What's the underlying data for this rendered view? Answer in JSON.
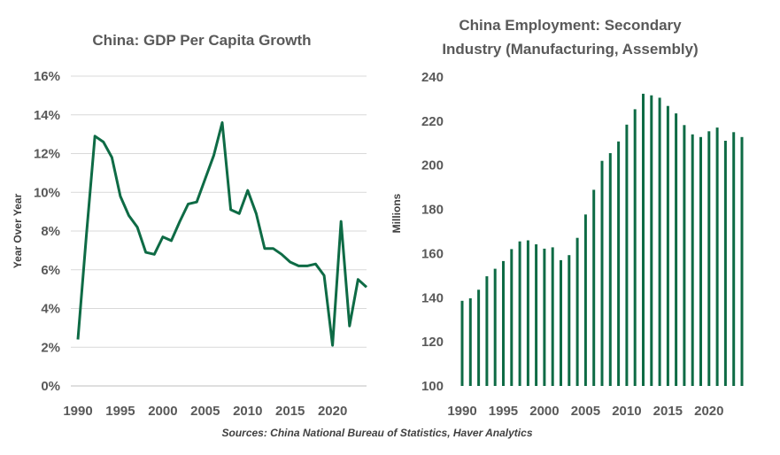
{
  "colors": {
    "series": "#0e6b45",
    "text": "#595959",
    "grid": "#d9d9d9"
  },
  "source_text": "Sources: China National Bureau of Statistics, Haver Analytics",
  "chart_data": [
    {
      "type": "line",
      "title": "China:  GDP Per Capita Growth",
      "xlabel": "",
      "ylabel": "Year Over Year",
      "xlim": [
        1990,
        2024
      ],
      "ylim": [
        0,
        16
      ],
      "yticks": [
        "0%",
        "2%",
        "4%",
        "6%",
        "8%",
        "10%",
        "12%",
        "14%",
        "16%"
      ],
      "ytick_values": [
        0,
        2,
        4,
        6,
        8,
        10,
        12,
        14,
        16
      ],
      "xticks": [
        "1990",
        "1995",
        "2000",
        "2005",
        "2010",
        "2015",
        "2020"
      ],
      "xtick_values": [
        1990,
        1995,
        2000,
        2005,
        2010,
        2015,
        2020
      ],
      "series": [
        {
          "name": "GDP Per Capita Growth",
          "x": [
            1990,
            1991,
            1992,
            1993,
            1994,
            1995,
            1996,
            1997,
            1998,
            1999,
            2000,
            2001,
            2002,
            2003,
            2004,
            2005,
            2006,
            2007,
            2008,
            2009,
            2010,
            2011,
            2012,
            2013,
            2014,
            2015,
            2016,
            2017,
            2018,
            2019,
            2020,
            2021,
            2022,
            2023,
            2024
          ],
          "values": [
            2.4,
            7.8,
            12.9,
            12.6,
            11.8,
            9.8,
            8.8,
            8.2,
            6.9,
            6.8,
            7.7,
            7.5,
            8.5,
            9.4,
            9.5,
            10.7,
            11.9,
            13.6,
            9.1,
            8.9,
            10.1,
            8.9,
            7.1,
            7.1,
            6.8,
            6.4,
            6.2,
            6.2,
            6.3,
            5.7,
            2.1,
            8.5,
            3.1,
            5.5,
            5.1
          ]
        }
      ]
    },
    {
      "type": "bar",
      "title": "China Employment:  Secondary Industry (Manufacturing,  Assembly)",
      "title_lines": [
        "China Employment:  Secondary",
        "Industry (Manufacturing,  Assembly)"
      ],
      "xlabel": "",
      "ylabel": "Millions",
      "xlim": [
        1990,
        2024
      ],
      "ylim": [
        100,
        240
      ],
      "yticks": [
        "100",
        "120",
        "140",
        "160",
        "180",
        "200",
        "220",
        "240"
      ],
      "ytick_values": [
        100,
        120,
        140,
        160,
        180,
        200,
        220,
        240
      ],
      "xticks": [
        "1990",
        "1995",
        "2000",
        "2005",
        "2010",
        "2015",
        "2020"
      ],
      "xtick_values": [
        1990,
        1995,
        2000,
        2005,
        2010,
        2015,
        2020
      ],
      "series": [
        {
          "name": "Secondary Industry Employment",
          "x": [
            1990,
            1991,
            1992,
            1993,
            1994,
            1995,
            1996,
            1997,
            1998,
            1999,
            2000,
            2001,
            2002,
            2003,
            2004,
            2005,
            2006,
            2007,
            2008,
            2009,
            2010,
            2011,
            2012,
            2013,
            2014,
            2015,
            2016,
            2017,
            2018,
            2019,
            2020,
            2021,
            2022,
            2023,
            2024
          ],
          "values": [
            138.6,
            139.7,
            143.6,
            149.7,
            153.1,
            156.6,
            162.0,
            165.5,
            166.0,
            164.2,
            162.2,
            162.8,
            157.0,
            159.3,
            167.1,
            177.7,
            188.9,
            202.0,
            205.5,
            210.8,
            218.4,
            225.4,
            232.4,
            231.7,
            230.6,
            226.9,
            223.5,
            218.2,
            214.0,
            212.8,
            215.4,
            217.1,
            211.1,
            215.0,
            212.8
          ]
        }
      ]
    }
  ]
}
